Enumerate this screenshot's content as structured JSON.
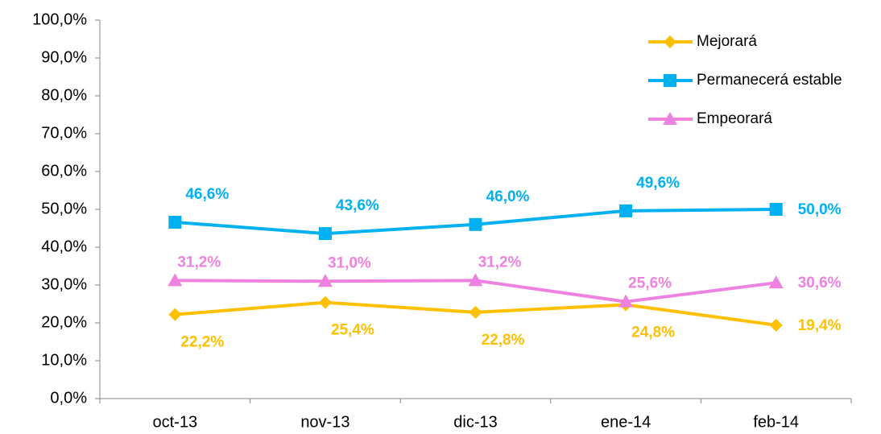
{
  "chart_data": {
    "type": "line",
    "categories": [
      "oct-13",
      "nov-13",
      "dic-13",
      "ene-14",
      "feb-14"
    ],
    "series": [
      {
        "name": "Mejorará",
        "color": "#FFC000",
        "values": [
          22.2,
          25.4,
          22.8,
          24.8,
          19.4
        ],
        "value_labels": [
          "22,2%",
          "25,4%",
          "22,8%",
          "24,8%",
          "19,4%"
        ]
      },
      {
        "name": "Permanecerá estable",
        "color": "#00B0F0",
        "values": [
          46.6,
          43.6,
          46.0,
          49.6,
          50.0
        ],
        "value_labels": [
          "46,6%",
          "43,6%",
          "46,0%",
          "49,6%",
          "50,0%"
        ]
      },
      {
        "name": "Empeorará",
        "color": "#EE82E0",
        "values": [
          31.2,
          31.0,
          31.2,
          25.6,
          30.6
        ],
        "value_labels": [
          "31,2%",
          "31,0%",
          "31,2%",
          "25,6%",
          "30,6%"
        ]
      }
    ],
    "ylim": [
      0,
      100
    ],
    "yticks": [
      {
        "value": 0,
        "label": "0,0%"
      },
      {
        "value": 10,
        "label": "10,0%"
      },
      {
        "value": 20,
        "label": "20,0%"
      },
      {
        "value": 30,
        "label": "30,0%"
      },
      {
        "value": 40,
        "label": "40,0%"
      },
      {
        "value": 50,
        "label": "50,0%"
      },
      {
        "value": 60,
        "label": "60,0%"
      },
      {
        "value": 70,
        "label": "70,0%"
      },
      {
        "value": 80,
        "label": "80,0%"
      },
      {
        "value": 90,
        "label": "90,0%"
      },
      {
        "value": 100,
        "label": "100,0%"
      }
    ],
    "grid": false,
    "legend": "upper right"
  }
}
